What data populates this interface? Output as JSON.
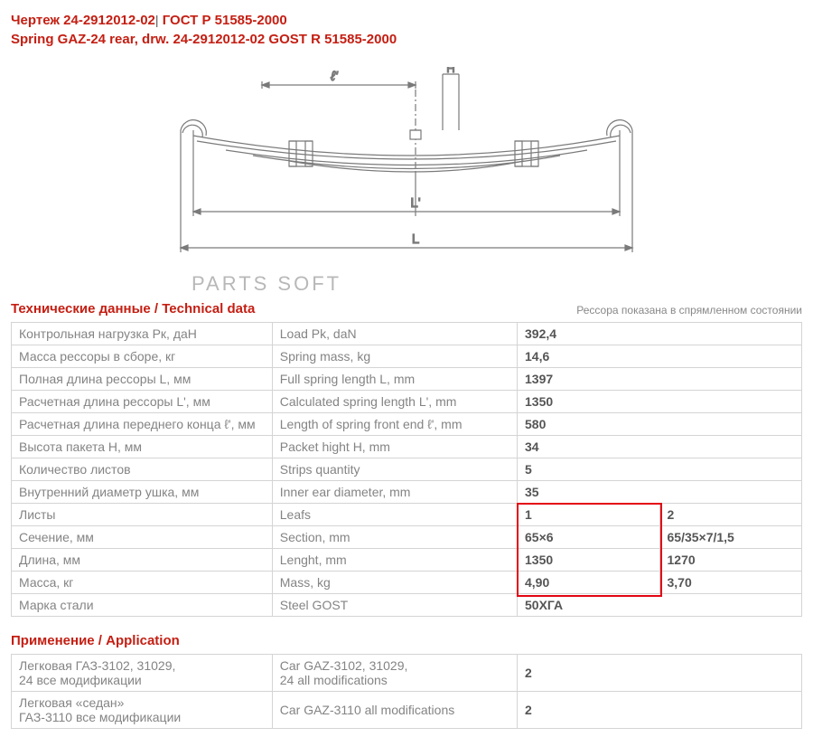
{
  "header": {
    "line1_a": "Чертеж 24-2912012-02",
    "line1_b": " ГОСТ Р 51585-2000",
    "line2": "Spring GAZ-24 rear, drw. 24-2912012-02 GOST R 51585-2000"
  },
  "diagram": {
    "labels": {
      "l_prime_small": "ℓ'",
      "H": "H",
      "L_prime": "L'",
      "L": "L"
    },
    "stroke": "#7a7a7a",
    "watermark": "PARTS  SOFT"
  },
  "section_tech": {
    "title": "Технические данные / Technical data",
    "note": "Рессора показана в спрямленном состоянии"
  },
  "tech_rows_single": [
    {
      "ru": "Контрольная нагрузка Рк, даН",
      "en": "Load Pk, daN",
      "val": "392,4"
    },
    {
      "ru": "Масса рессоры в сборе, кг",
      "en": "Spring mass, kg",
      "val": "14,6"
    },
    {
      "ru": "Полная длина рессоры L, мм",
      "en": "Full spring length L, mm",
      "val": "1397"
    },
    {
      "ru": "Расчетная длина рессоры L', мм",
      "en": "Calculated spring length L', mm",
      "val": "1350"
    },
    {
      "ru": "Расчетная длина переднего конца ℓ', мм",
      "en": "Length of spring front end ℓ', mm",
      "val": "580"
    },
    {
      "ru": "Высота пакета Н, мм",
      "en": "Packet hight H, mm",
      "val": "34"
    },
    {
      "ru": "Количество листов",
      "en": "Strips quantity",
      "val": "5"
    },
    {
      "ru": "Внутренний диаметр ушка, мм",
      "en": "Inner ear diameter, mm",
      "val": "35"
    }
  ],
  "tech_rows_double": [
    {
      "ru": "Листы",
      "en": "Leafs",
      "v1": "1",
      "v2": "2"
    },
    {
      "ru": "Сечение, мм",
      "en": "Section, mm",
      "v1": "65×6",
      "v2": "65/35×7/1,5"
    },
    {
      "ru": "Длина, мм",
      "en": "Lenght, mm",
      "v1": "1350",
      "v2": "1270"
    },
    {
      "ru": "Масса, кг",
      "en": "Mass, kg",
      "v1": "4,90",
      "v2": "3,70"
    }
  ],
  "tech_row_final": {
    "ru": "Марка стали",
    "en": "Steel GOST",
    "val": "50ХГА"
  },
  "highlight": {
    "color": "#e30613"
  },
  "section_app": {
    "title": "Применение / Application"
  },
  "app_rows": [
    {
      "ru": "Легковая ГАЗ-3102, 31029,\n24 все модификации",
      "en": "Car GAZ-3102, 31029,\n24 all modifications",
      "val": "2"
    },
    {
      "ru": "Легковая «седан»\nГАЗ-3110 все модификации",
      "en": "Car GAZ-3110 all modifications",
      "val": "2"
    }
  ]
}
